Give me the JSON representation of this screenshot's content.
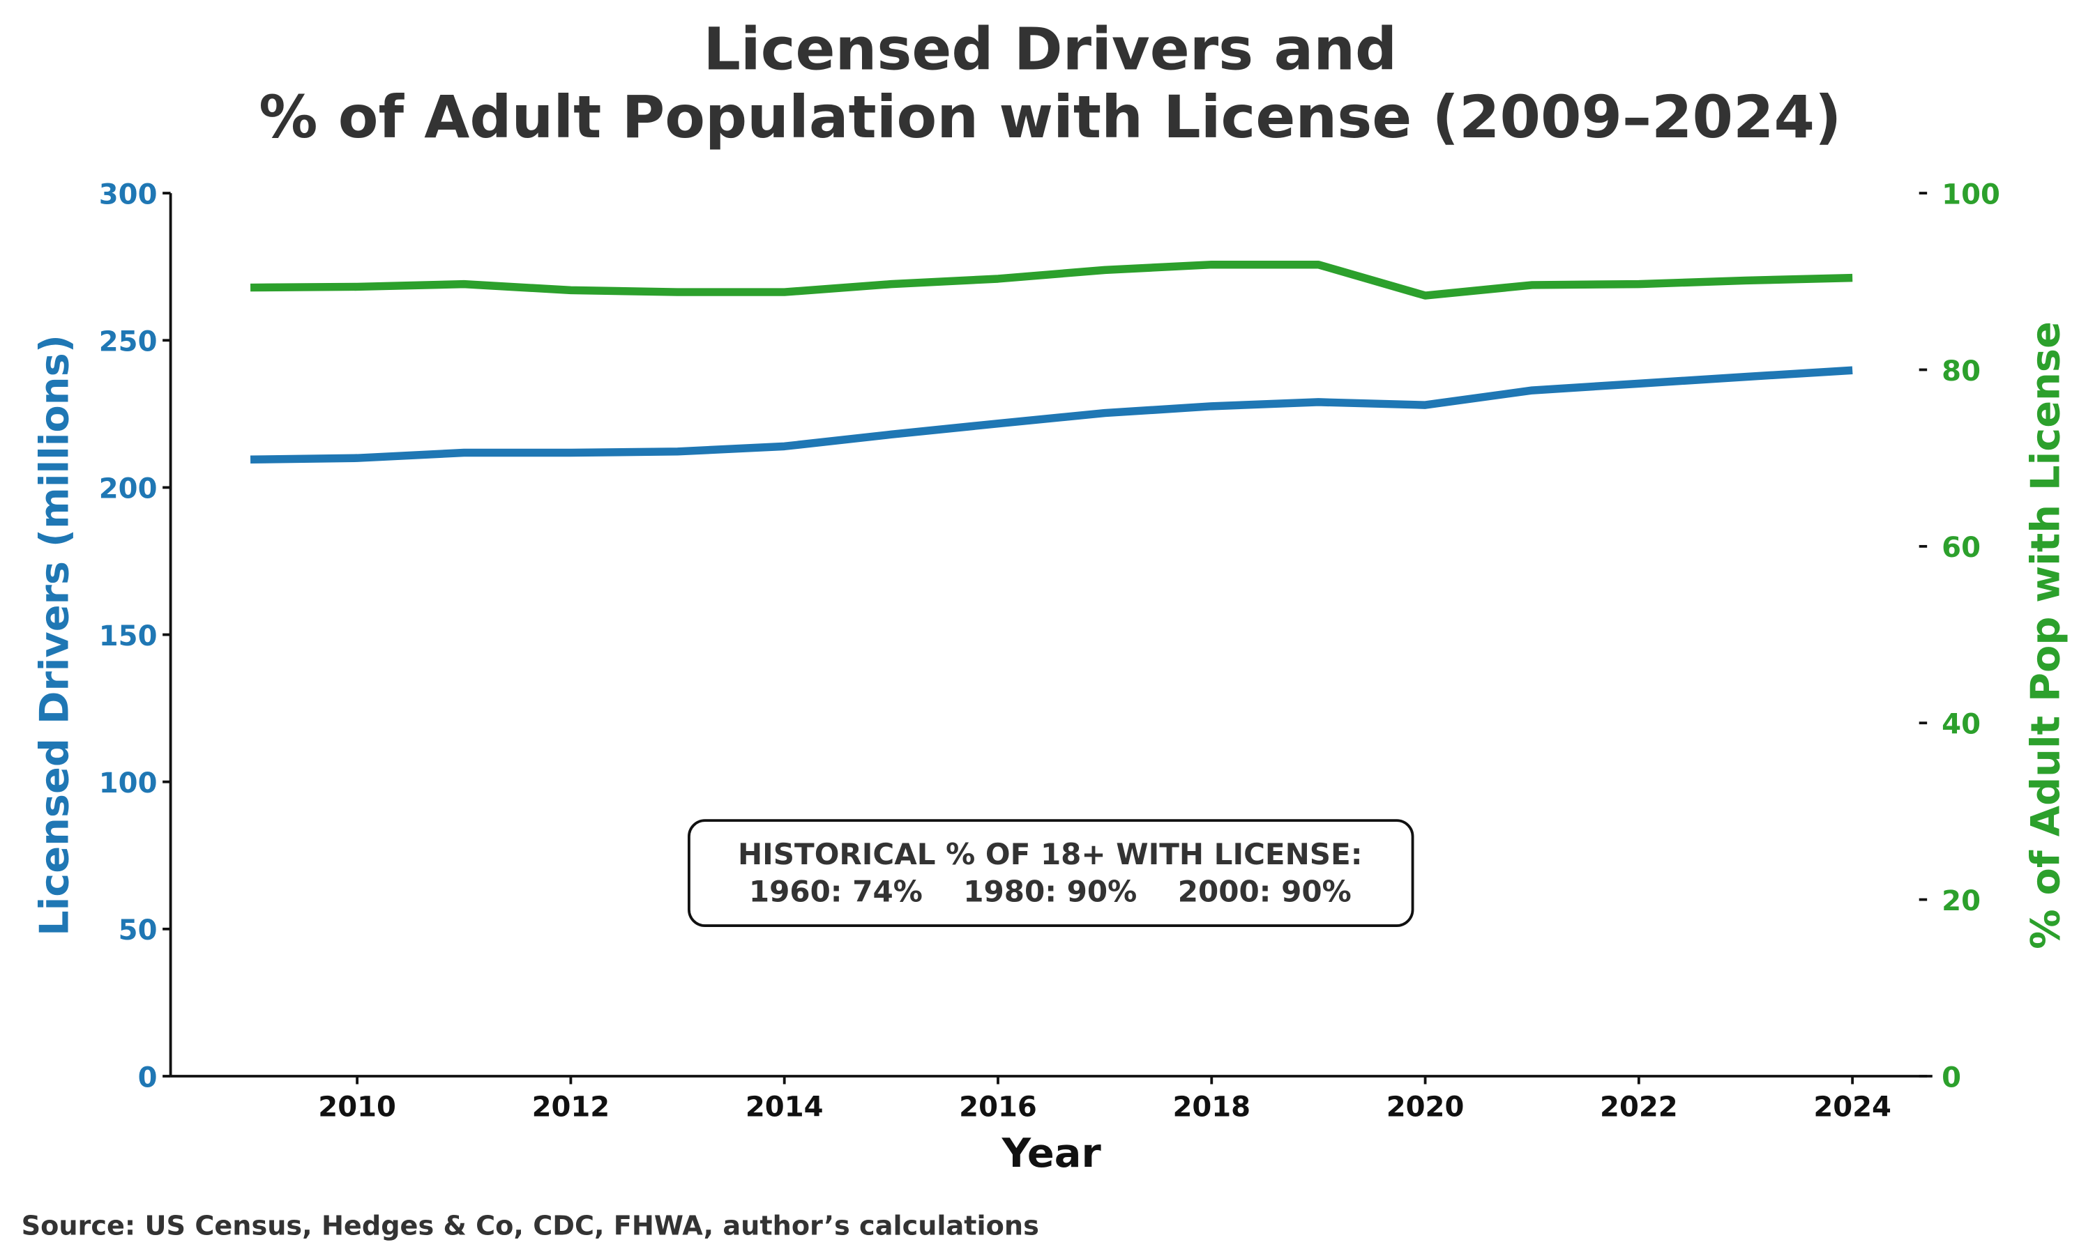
{
  "chart_data": {
    "type": "line",
    "title_line1": "Licensed Drivers and",
    "title_line2": "% of Adult Population with License (2009–2024)",
    "xlabel": "Year",
    "ylabel_left": "Licensed Drivers (millions)",
    "ylabel_right": "% of Adult Pop with License",
    "x": [
      2009,
      2010,
      2011,
      2012,
      2013,
      2014,
      2015,
      2016,
      2017,
      2018,
      2019,
      2020,
      2021,
      2022,
      2023,
      2024
    ],
    "x_ticks": [
      "2010",
      "2012",
      "2014",
      "2016",
      "2018",
      "2020",
      "2022",
      "2024"
    ],
    "y_left_ticks": [
      "0",
      "50",
      "100",
      "150",
      "200",
      "250",
      "300"
    ],
    "y_right_ticks": [
      "0",
      "20",
      "40",
      "60",
      "80",
      "100"
    ],
    "ylim_left": [
      0,
      300
    ],
    "ylim_right": [
      0,
      100
    ],
    "series": [
      {
        "name": "Licensed Drivers (millions)",
        "axis": "left",
        "color": "#1f77b4",
        "values": [
          209.5,
          210,
          211.8,
          211.8,
          212.2,
          214,
          218,
          221.7,
          225.3,
          227.6,
          229,
          228,
          233,
          235.3,
          237.6,
          239.8
        ]
      },
      {
        "name": "% of Adult Pop with License",
        "axis": "right",
        "color": "#2ca02c",
        "values": [
          89.3,
          89.4,
          89.7,
          89.0,
          88.8,
          88.8,
          89.7,
          90.3,
          91.3,
          91.9,
          91.9,
          88.4,
          89.6,
          89.7,
          90.1,
          90.4
        ]
      }
    ],
    "annotation_line1": "HISTORICAL % OF 18+ WITH LICENSE:",
    "annotation_line2": "1960: 74%    1980: 90%    2000: 90%",
    "grid": false
  },
  "source": "Source: US Census, Hedges & Co, CDC, FHWA, author’s calculations"
}
